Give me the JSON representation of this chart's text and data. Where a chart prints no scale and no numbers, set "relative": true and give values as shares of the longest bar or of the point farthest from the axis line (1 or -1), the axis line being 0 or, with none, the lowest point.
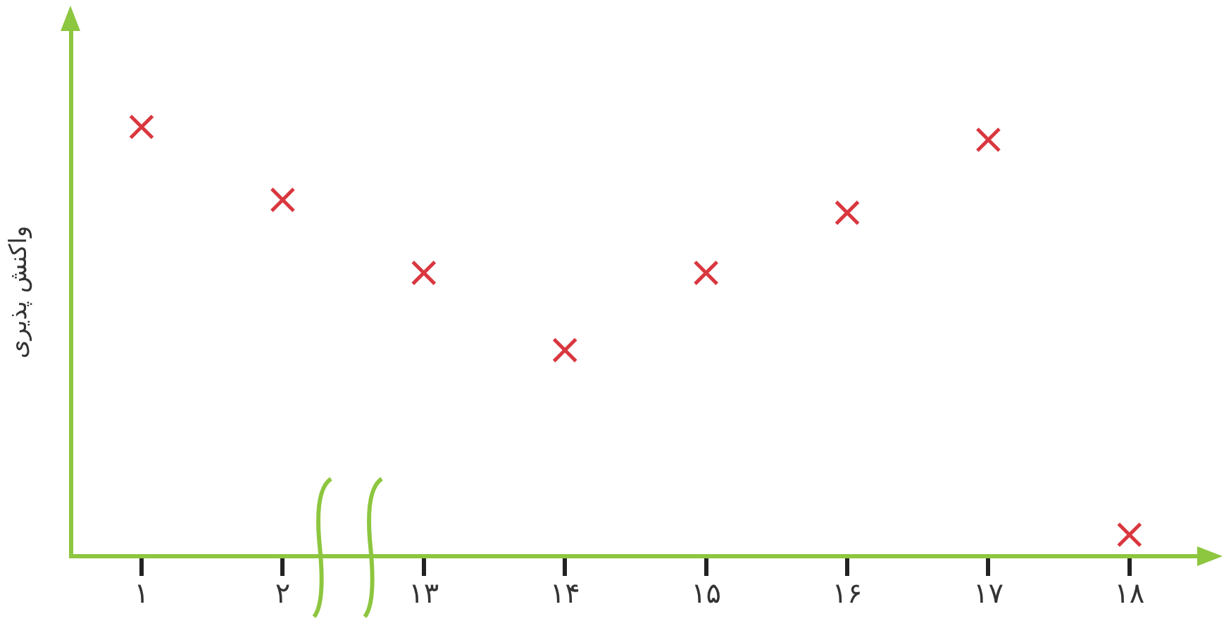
{
  "chart_data": {
    "type": "scatter",
    "ylabel": "واکنش پذیری",
    "categories": [
      "۱",
      "۲",
      "۱۳",
      "۱۴",
      "۱۵",
      "۱۶",
      "۱۷",
      "۱۸"
    ],
    "series": [
      {
        "color": "#d9373f",
        "values": [
          1,
          0.83,
          0.66,
          0.48,
          0.66,
          0.8,
          0.97,
          0.05
        ]
      }
    ],
    "relative": true,
    "marker": "cross",
    "grid": false,
    "legend": false
  }
}
